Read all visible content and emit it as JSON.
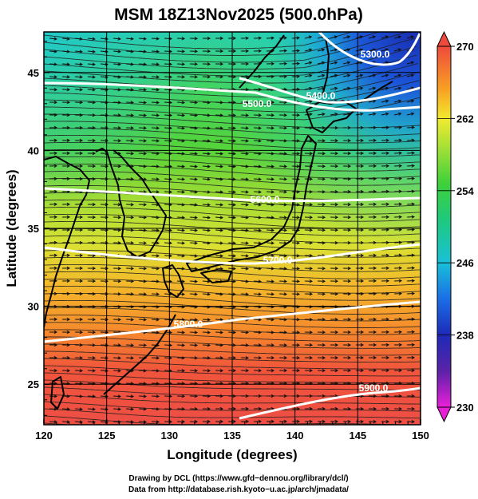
{
  "title": "MSM 18Z13Nov2025 (500.0hPa)",
  "x_axis": {
    "label": "Longitude (degrees)",
    "range": [
      120,
      150
    ],
    "ticks": [
      120,
      125,
      130,
      135,
      140,
      145,
      150
    ]
  },
  "y_axis": {
    "label": "Latitude  (degrees)",
    "range": [
      22.4,
      47.6
    ],
    "ticks": [
      25,
      30,
      35,
      40,
      45
    ]
  },
  "colorbar": {
    "range": [
      230,
      270
    ],
    "ticks": [
      230,
      238,
      246,
      254,
      262,
      270
    ]
  },
  "contours": [
    {
      "label": "5300.0"
    },
    {
      "label": "5400.0"
    },
    {
      "label": "5500.0"
    },
    {
      "label": "5600.0"
    },
    {
      "label": "5700.0"
    },
    {
      "label": "5800.0"
    },
    {
      "label": "5900.0"
    }
  ],
  "credits": [
    "Drawing by DCL (https://www.gfd−dennou.org/library/dcl/)",
    "Data from http://database.rish.kyoto−u.ac.jp/arch/jmadata/"
  ]
}
